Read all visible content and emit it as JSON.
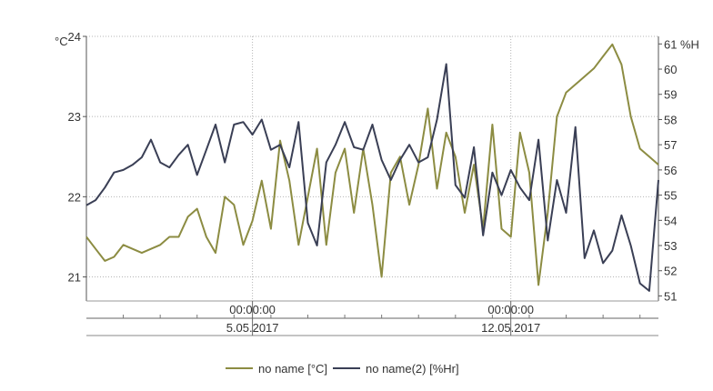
{
  "chart_data": {
    "type": "line",
    "y_left": {
      "unit": "°C",
      "ylim": [
        20.7,
        24.0
      ],
      "ticks": [
        "21",
        "22",
        "23",
        "24"
      ]
    },
    "y_right": {
      "unit": "%H",
      "ylim": [
        50.8,
        61.3
      ],
      "ticks": [
        "51",
        "52",
        "53",
        "54",
        "55",
        "56",
        "57",
        "58",
        "59",
        "60",
        "61"
      ]
    },
    "x_axis": {
      "type": "time",
      "range": [
        "2017-04-30 12:00",
        "2017-05-16 00:00"
      ],
      "major_ticks": [
        {
          "x": "2017-05-05 00:00",
          "time_label": "00:00:00",
          "date_label": "5.05.2017"
        },
        {
          "x": "2017-05-12 00:00",
          "time_label": "00:00:00",
          "date_label": "12.05.2017"
        }
      ],
      "minor_ticks": [
        "2017-05-01 12:00",
        "2017-05-02 12:00",
        "2017-05-03 12:00",
        "2017-05-04 12:00",
        "2017-05-05 12:00",
        "2017-05-06 12:00",
        "2017-05-07 12:00",
        "2017-05-08 12:00",
        "2017-05-09 12:00",
        "2017-05-10 12:00",
        "2017-05-11 12:00",
        "2017-05-12 12:00",
        "2017-05-13 12:00",
        "2017-05-14 12:00",
        "2017-05-15 12:00"
      ]
    },
    "grid": true,
    "legend_position": "bottom",
    "series": [
      {
        "name": "no name [°C]",
        "axis": "left",
        "color": "#8c8c42",
        "x": [
          "2017-04-30 12:00",
          "2017-04-30 18:00",
          "2017-05-01 00:00",
          "2017-05-01 06:00",
          "2017-05-01 12:00",
          "2017-05-01 18:00",
          "2017-05-02 00:00",
          "2017-05-02 06:00",
          "2017-05-02 12:00",
          "2017-05-02 18:00",
          "2017-05-03 00:00",
          "2017-05-03 06:00",
          "2017-05-03 12:00",
          "2017-05-03 18:00",
          "2017-05-04 00:00",
          "2017-05-04 06:00",
          "2017-05-04 12:00",
          "2017-05-04 18:00",
          "2017-05-05 00:00",
          "2017-05-05 06:00",
          "2017-05-05 12:00",
          "2017-05-05 18:00",
          "2017-05-06 00:00",
          "2017-05-06 06:00",
          "2017-05-06 12:00",
          "2017-05-06 18:00",
          "2017-05-07 00:00",
          "2017-05-07 06:00",
          "2017-05-07 12:00",
          "2017-05-07 18:00",
          "2017-05-08 00:00",
          "2017-05-08 06:00",
          "2017-05-08 12:00",
          "2017-05-08 18:00",
          "2017-05-09 00:00",
          "2017-05-09 06:00",
          "2017-05-09 12:00",
          "2017-05-09 18:00",
          "2017-05-10 00:00",
          "2017-05-10 06:00",
          "2017-05-10 12:00",
          "2017-05-10 18:00",
          "2017-05-11 00:00",
          "2017-05-11 06:00",
          "2017-05-11 12:00",
          "2017-05-11 18:00",
          "2017-05-12 00:00",
          "2017-05-12 06:00",
          "2017-05-12 12:00",
          "2017-05-12 18:00",
          "2017-05-13 00:00",
          "2017-05-13 06:00",
          "2017-05-13 12:00",
          "2017-05-13 18:00",
          "2017-05-14 00:00",
          "2017-05-14 06:00",
          "2017-05-14 12:00",
          "2017-05-14 18:00",
          "2017-05-15 00:00",
          "2017-05-15 06:00",
          "2017-05-15 12:00",
          "2017-05-15 18:00",
          "2017-05-16 00:00"
        ],
        "y": [
          21.5,
          21.35,
          21.2,
          21.25,
          21.4,
          21.35,
          21.3,
          21.35,
          21.4,
          21.5,
          21.5,
          21.75,
          21.85,
          21.5,
          21.3,
          22.0,
          21.9,
          21.4,
          21.7,
          22.2,
          21.6,
          22.7,
          22.2,
          21.4,
          22.0,
          22.6,
          21.4,
          22.3,
          22.6,
          21.8,
          22.6,
          21.9,
          21.0,
          22.3,
          22.5,
          21.9,
          22.4,
          23.1,
          22.1,
          22.8,
          22.5,
          21.8,
          22.4,
          21.6,
          22.9,
          21.6,
          21.5,
          22.8,
          22.3,
          20.9,
          21.8,
          23.0,
          23.3,
          23.4,
          23.5,
          23.6,
          23.75,
          23.9,
          23.65,
          23.0,
          22.6,
          22.5,
          22.4
        ]
      },
      {
        "name": "no name(2) [%Hr]",
        "axis": "right",
        "color": "#3a3f55",
        "x": [
          "2017-04-30 12:00",
          "2017-04-30 18:00",
          "2017-05-01 00:00",
          "2017-05-01 06:00",
          "2017-05-01 12:00",
          "2017-05-01 18:00",
          "2017-05-02 00:00",
          "2017-05-02 06:00",
          "2017-05-02 12:00",
          "2017-05-02 18:00",
          "2017-05-03 00:00",
          "2017-05-03 06:00",
          "2017-05-03 12:00",
          "2017-05-03 18:00",
          "2017-05-04 00:00",
          "2017-05-04 06:00",
          "2017-05-04 12:00",
          "2017-05-04 18:00",
          "2017-05-05 00:00",
          "2017-05-05 06:00",
          "2017-05-05 12:00",
          "2017-05-05 18:00",
          "2017-05-06 00:00",
          "2017-05-06 06:00",
          "2017-05-06 12:00",
          "2017-05-06 18:00",
          "2017-05-07 00:00",
          "2017-05-07 06:00",
          "2017-05-07 12:00",
          "2017-05-07 18:00",
          "2017-05-08 00:00",
          "2017-05-08 06:00",
          "2017-05-08 12:00",
          "2017-05-08 18:00",
          "2017-05-09 00:00",
          "2017-05-09 06:00",
          "2017-05-09 12:00",
          "2017-05-09 18:00",
          "2017-05-10 00:00",
          "2017-05-10 06:00",
          "2017-05-10 12:00",
          "2017-05-10 18:00",
          "2017-05-11 00:00",
          "2017-05-11 06:00",
          "2017-05-11 12:00",
          "2017-05-11 18:00",
          "2017-05-12 00:00",
          "2017-05-12 06:00",
          "2017-05-12 12:00",
          "2017-05-12 18:00",
          "2017-05-13 00:00",
          "2017-05-13 06:00",
          "2017-05-13 12:00",
          "2017-05-13 18:00",
          "2017-05-14 00:00",
          "2017-05-14 06:00",
          "2017-05-14 12:00",
          "2017-05-14 18:00",
          "2017-05-15 00:00",
          "2017-05-15 06:00",
          "2017-05-15 12:00",
          "2017-05-15 18:00",
          "2017-05-16 00:00"
        ],
        "y": [
          54.6,
          54.8,
          55.3,
          55.9,
          56.0,
          56.2,
          56.5,
          57.2,
          56.3,
          56.1,
          56.6,
          57.0,
          55.8,
          56.8,
          57.8,
          56.3,
          57.8,
          57.9,
          57.4,
          58.0,
          56.8,
          57.0,
          56.1,
          57.9,
          53.9,
          53.0,
          56.3,
          57.0,
          57.9,
          56.9,
          56.8,
          57.8,
          56.4,
          55.6,
          56.4,
          57.0,
          56.3,
          56.5,
          58.0,
          60.2,
          55.4,
          54.9,
          56.9,
          53.4,
          55.9,
          55.0,
          56.0,
          55.3,
          54.8,
          57.2,
          53.2,
          55.6,
          54.3,
          57.7,
          52.5,
          53.6,
          52.3,
          52.8,
          54.2,
          53.0,
          51.5,
          51.2,
          55.6
        ]
      }
    ]
  },
  "legend": [
    {
      "label": "no name [°C]",
      "color": "#8c8c42"
    },
    {
      "label": "no name(2) [%Hr]",
      "color": "#3a3f55"
    }
  ]
}
